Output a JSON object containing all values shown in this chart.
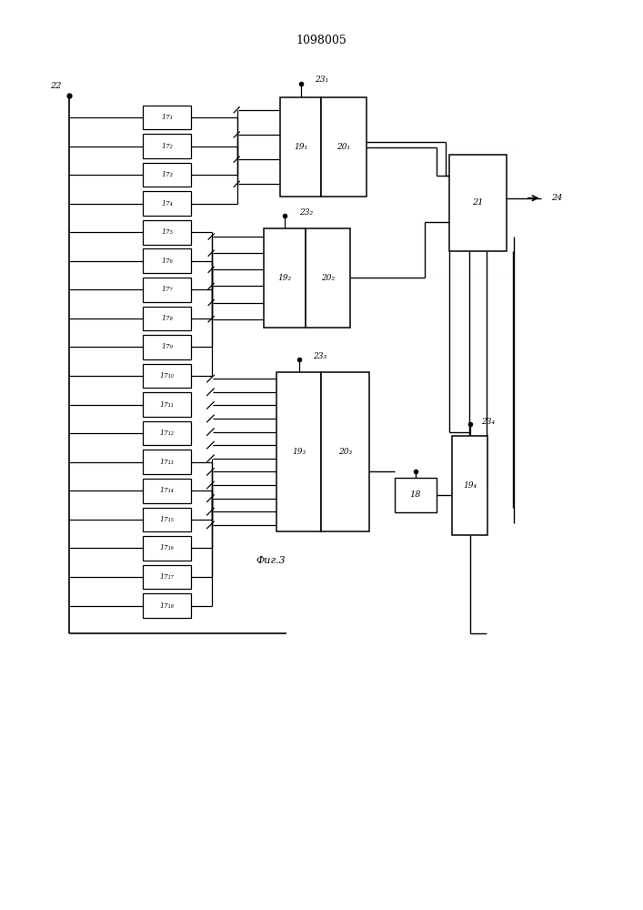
{
  "title": "1098005",
  "caption": "Фиг.3",
  "bg_color": "#ffffff",
  "block_labels_17": [
    "17₁",
    "17₂",
    "17₃",
    "17₄",
    "17₅",
    "17₆",
    "17₇",
    "17₈",
    "17₉",
    "17₁₀",
    "17₁₁",
    "17₁₂",
    "17₁₃",
    "17₁₄",
    "17₁₅",
    "17₁₆",
    "17₁₇",
    "17₁₈"
  ],
  "label_22": "22",
  "label_21": "21",
  "label_24": "24",
  "label_18": "18",
  "label_191": "19₁",
  "label_192": "19₂",
  "label_193": "19₃",
  "label_194": "19₄",
  "label_201": "20₁",
  "label_202": "20₂",
  "label_203": "20₃",
  "label_231": "23₁",
  "label_232": "23₂",
  "label_233": "23₃",
  "label_234": "23₄"
}
